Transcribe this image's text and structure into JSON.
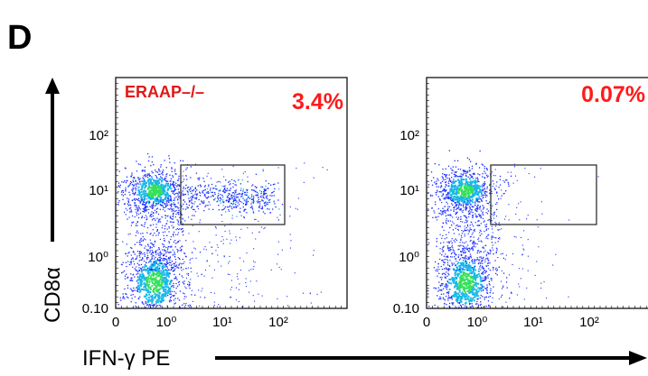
{
  "figure": {
    "panel_label": "D",
    "y_axis_label": "CD8α",
    "x_axis_label": "IFN-γ PE"
  },
  "colors": {
    "annotation": "#ff1a1a",
    "density_low": "#1a2dff",
    "density_mid": "#18b8e8",
    "density_high": "#36e05a",
    "gate": "#333333"
  },
  "chart_data": [
    {
      "type": "scatter",
      "label": "ERAAP–/–",
      "percent_in_gate": "3.4%",
      "x_scale": "log (biexponential)",
      "y_scale": "log (biexponential)",
      "x_ticks": [
        "0",
        "10⁰",
        "10¹",
        "10²"
      ],
      "y_ticks": [
        "0.10",
        "10⁰",
        "10¹",
        "10²"
      ],
      "gate": {
        "x": [
          1.2,
          80
        ],
        "y": [
          2.8,
          30
        ]
      },
      "populations": [
        {
          "name": "",
          "x_center": 0.3,
          "y_center": 11,
          "relative_density": "high"
        },
        {
          "name": "",
          "x_center": 0.3,
          "y_center": 0.28,
          "relative_density": "high"
        },
        {
          "name": "",
          "x_center": 8,
          "y_center": 7,
          "relative_density": "low"
        }
      ]
    },
    {
      "type": "scatter",
      "label": "",
      "percent_in_gate": "0.07%",
      "x_scale": "log (biexponential)",
      "y_scale": "log (biexponential)",
      "x_ticks": [
        "0",
        "10⁰",
        "10¹",
        "10²"
      ],
      "y_ticks": [
        "0.10",
        "10⁰",
        "10¹",
        "10²"
      ],
      "gate": {
        "x": [
          1.2,
          80
        ],
        "y": [
          2.8,
          30
        ]
      },
      "populations": [
        {
          "name": "",
          "x_center": 0.3,
          "y_center": 11,
          "relative_density": "high"
        },
        {
          "name": "",
          "x_center": 0.3,
          "y_center": 0.28,
          "relative_density": "high"
        }
      ]
    }
  ]
}
